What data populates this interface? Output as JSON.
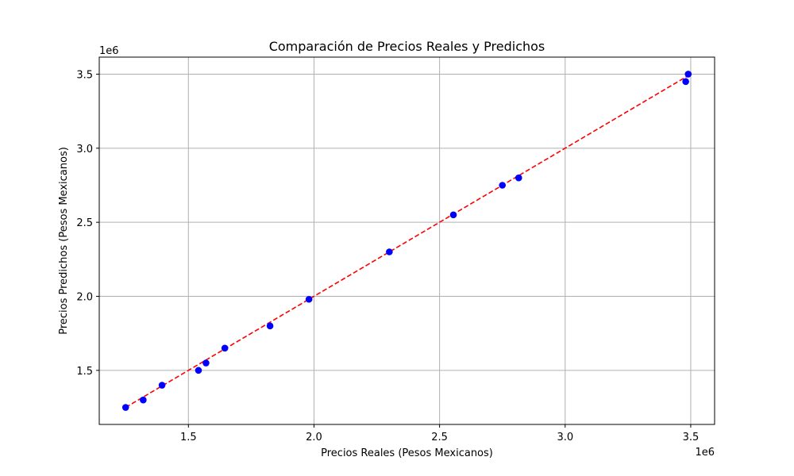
{
  "chart_data": {
    "type": "scatter",
    "title": "Comparación de Precios Reales y Predichos",
    "xlabel": "Precios Reales (Pesos Mexicanos)",
    "ylabel": "Precios Predichos (Pesos Mexicanos)",
    "x_offset_label": "1e6",
    "y_offset_label": "1e6",
    "xlim": [
      1145000,
      3595000
    ],
    "ylim": [
      1135000,
      3615000
    ],
    "x_ticks": [
      {
        "value": 1500000,
        "label": "1.5"
      },
      {
        "value": 2000000,
        "label": "2.0"
      },
      {
        "value": 2500000,
        "label": "2.5"
      },
      {
        "value": 3000000,
        "label": "3.0"
      },
      {
        "value": 3500000,
        "label": "3.5"
      }
    ],
    "y_ticks": [
      {
        "value": 1500000,
        "label": "1.5"
      },
      {
        "value": 2000000,
        "label": "2.0"
      },
      {
        "value": 2500000,
        "label": "2.5"
      },
      {
        "value": 3000000,
        "label": "3.0"
      },
      {
        "value": 3500000,
        "label": "3.5"
      }
    ],
    "grid": true,
    "points": [
      {
        "x": 1250000,
        "y": 1250000
      },
      {
        "x": 1320000,
        "y": 1300000
      },
      {
        "x": 1395000,
        "y": 1400000
      },
      {
        "x": 1540000,
        "y": 1500000
      },
      {
        "x": 1570000,
        "y": 1550000
      },
      {
        "x": 1645000,
        "y": 1650000
      },
      {
        "x": 1825000,
        "y": 1800000
      },
      {
        "x": 1980000,
        "y": 1980000
      },
      {
        "x": 2300000,
        "y": 2300000
      },
      {
        "x": 2555000,
        "y": 2550000
      },
      {
        "x": 2750000,
        "y": 2750000
      },
      {
        "x": 2815000,
        "y": 2800000
      },
      {
        "x": 3480000,
        "y": 3450000
      },
      {
        "x": 3490000,
        "y": 3500000
      }
    ],
    "reference_line": {
      "x": [
        1250000,
        3490000
      ],
      "y": [
        1250000,
        3490000
      ]
    },
    "colors": {
      "points": "#0000ff",
      "reference_line": "#ff0000",
      "grid": "#b0b0b0",
      "axes": "#000000"
    }
  }
}
